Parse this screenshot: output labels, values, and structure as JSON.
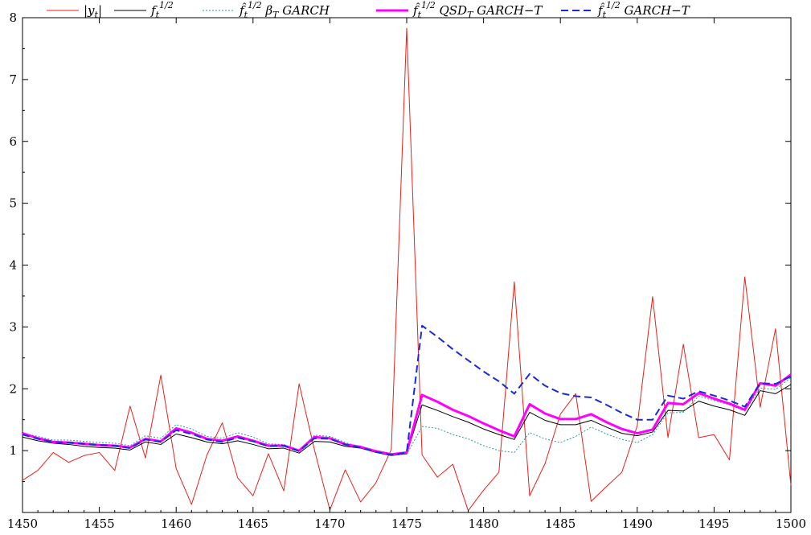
{
  "chart_data": {
    "type": "line",
    "title": "",
    "xlabel": "",
    "ylabel": "",
    "xlim": [
      1450,
      1500
    ],
    "ylim": [
      0,
      8
    ],
    "grid": false,
    "legend_placement": "top",
    "x_ticks": [
      1450,
      1455,
      1460,
      1465,
      1470,
      1475,
      1480,
      1485,
      1490,
      1495,
      1500
    ],
    "y_ticks": [
      1,
      2,
      3,
      4,
      5,
      6,
      7,
      8
    ],
    "x": [
      1450,
      1451,
      1452,
      1453,
      1454,
      1455,
      1456,
      1457,
      1458,
      1459,
      1460,
      1461,
      1462,
      1463,
      1464,
      1465,
      1466,
      1467,
      1468,
      1469,
      1470,
      1471,
      1472,
      1473,
      1474,
      1475,
      1476,
      1477,
      1478,
      1479,
      1480,
      1481,
      1482,
      1483,
      1484,
      1485,
      1486,
      1487,
      1488,
      1489,
      1490,
      1491,
      1492,
      1493,
      1494,
      1495,
      1496,
      1497,
      1498,
      1499,
      1500
    ],
    "series": [
      {
        "name": "|y_t|",
        "color": "#e8201a",
        "style": "thin",
        "values": [
          0.52,
          0.68,
          0.97,
          0.81,
          0.92,
          0.97,
          0.68,
          1.72,
          0.88,
          2.22,
          0.71,
          0.13,
          0.93,
          1.45,
          0.56,
          0.27,
          0.95,
          0.35,
          2.08,
          1.01,
          0.04,
          0.69,
          0.17,
          0.48,
          1.02,
          7.83,
          0.93,
          0.57,
          0.78,
          0.03,
          0.36,
          0.65,
          3.73,
          0.27,
          0.79,
          1.59,
          1.92,
          0.18,
          0.42,
          0.65,
          1.4,
          3.49,
          1.21,
          2.72,
          1.21,
          1.26,
          0.85,
          3.81,
          1.7,
          2.97,
          0.44
        ]
      },
      {
        "name": "f_t^1/2",
        "color": "#000000",
        "style": "thin",
        "values": [
          1.22,
          1.16,
          1.12,
          1.1,
          1.07,
          1.05,
          1.04,
          1.01,
          1.14,
          1.1,
          1.27,
          1.21,
          1.14,
          1.11,
          1.16,
          1.1,
          1.03,
          1.04,
          0.96,
          1.15,
          1.14,
          1.07,
          1.04,
          0.97,
          0.92,
          0.95,
          1.74,
          1.65,
          1.55,
          1.46,
          1.35,
          1.26,
          1.18,
          1.62,
          1.49,
          1.42,
          1.42,
          1.49,
          1.38,
          1.28,
          1.24,
          1.3,
          1.65,
          1.64,
          1.8,
          1.72,
          1.66,
          1.57,
          1.97,
          1.92,
          2.07
        ]
      },
      {
        "name": "f_t^1/2 β_T GARCH",
        "color": "#2a9a9a",
        "style": "dotted",
        "values": [
          1.28,
          1.23,
          1.17,
          1.17,
          1.15,
          1.13,
          1.12,
          1.08,
          1.24,
          1.2,
          1.42,
          1.35,
          1.23,
          1.2,
          1.29,
          1.22,
          1.11,
          1.1,
          1.01,
          1.25,
          1.23,
          1.13,
          1.06,
          1.0,
          0.93,
          0.94,
          1.39,
          1.36,
          1.26,
          1.19,
          1.08,
          1.0,
          0.97,
          1.29,
          1.19,
          1.13,
          1.23,
          1.38,
          1.27,
          1.18,
          1.13,
          1.26,
          1.61,
          1.62,
          1.88,
          1.81,
          1.74,
          1.64,
          2.01,
          1.99,
          2.18
        ]
      },
      {
        "name": "f_t^1/2 QSD_T GARCH-T",
        "color": "#ff00ff",
        "style": "thick",
        "values": [
          1.28,
          1.2,
          1.14,
          1.13,
          1.11,
          1.09,
          1.08,
          1.05,
          1.19,
          1.15,
          1.36,
          1.29,
          1.19,
          1.16,
          1.23,
          1.16,
          1.08,
          1.08,
          1.0,
          1.22,
          1.2,
          1.1,
          1.06,
          0.99,
          0.94,
          0.97,
          1.9,
          1.79,
          1.66,
          1.56,
          1.44,
          1.33,
          1.23,
          1.75,
          1.6,
          1.51,
          1.51,
          1.59,
          1.46,
          1.35,
          1.28,
          1.34,
          1.77,
          1.75,
          1.93,
          1.84,
          1.76,
          1.66,
          2.09,
          2.05,
          2.23
        ]
      },
      {
        "name": "f_t^1/2 GARCH-T",
        "color": "#1a2ad8",
        "style": "dashed",
        "values": [
          1.26,
          1.19,
          1.14,
          1.13,
          1.11,
          1.09,
          1.08,
          1.04,
          1.18,
          1.14,
          1.33,
          1.27,
          1.18,
          1.14,
          1.21,
          1.15,
          1.07,
          1.08,
          0.99,
          1.2,
          1.19,
          1.1,
          1.05,
          0.98,
          0.93,
          0.97,
          3.02,
          2.84,
          2.64,
          2.46,
          2.28,
          2.12,
          1.92,
          2.24,
          2.05,
          1.93,
          1.88,
          1.86,
          1.74,
          1.61,
          1.5,
          1.5,
          1.89,
          1.84,
          1.96,
          1.89,
          1.81,
          1.71,
          2.09,
          2.08,
          2.2
        ]
      }
    ]
  },
  "legend": [
    {
      "id": "absy",
      "label": "|y",
      "sub": "t",
      "tail": "|"
    },
    {
      "id": "ft",
      "label": "f",
      "sub": "t",
      "sup": "1/2"
    },
    {
      "id": "garch",
      "label": "f̂",
      "sub": "t",
      "sup": "1/2",
      "tail": " β",
      "sub2": "T",
      "tail2": " GARCH"
    },
    {
      "id": "qsd",
      "label": "f̂",
      "sub": "t",
      "sup": "1/2",
      "tail": " QSD",
      "sub2": "T",
      "tail2": " GARCH−T"
    },
    {
      "id": "garcht",
      "label": "f̂",
      "sub": "t",
      "sup": "1/2",
      "tail": " GARCH−T"
    }
  ]
}
